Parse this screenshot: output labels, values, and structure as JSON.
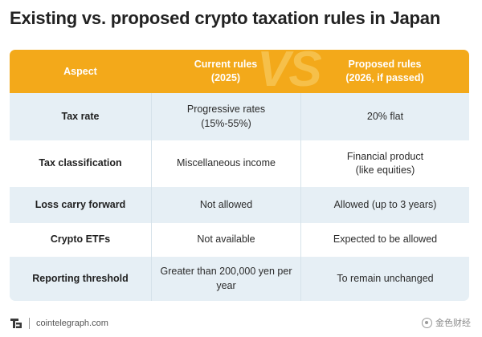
{
  "title": "Existing vs. proposed crypto taxation rules in Japan",
  "header": {
    "aspect": "Aspect",
    "current": "Current rules\n(2025)",
    "proposed": "Proposed rules\n(2026, if passed)",
    "vs_mark": "VS"
  },
  "rows": [
    {
      "aspect": "Tax rate",
      "current": "Progressive rates\n(15%-55%)",
      "proposed": "20% flat"
    },
    {
      "aspect": "Tax classification",
      "current": "Miscellaneous income",
      "proposed": "Financial product\n(like equities)"
    },
    {
      "aspect": "Loss carry forward",
      "current": "Not allowed",
      "proposed": "Allowed (up to 3 years)"
    },
    {
      "aspect": "Crypto ETFs",
      "current": "Not available",
      "proposed": "Expected to be allowed"
    },
    {
      "aspect": "Reporting threshold",
      "current": "Greater than 200,000 yen per\nyear",
      "proposed": "To remain unchanged"
    }
  ],
  "footer": {
    "source": "cointelegraph.com"
  },
  "watermark": {
    "text": "金色财经"
  },
  "colors": {
    "header_bg": "#f3a91a",
    "shaded_row": "#e6eff5",
    "vs_mark": "#f6c04a"
  }
}
